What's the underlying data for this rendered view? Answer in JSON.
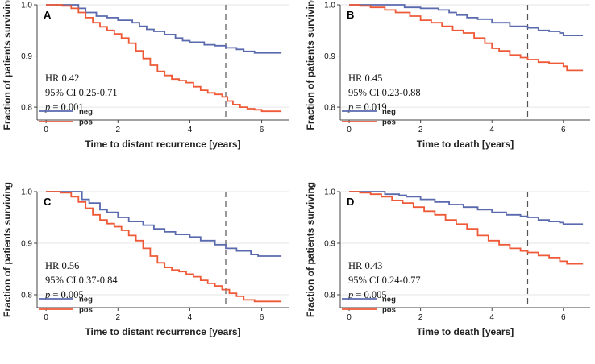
{
  "colors": {
    "neg": "#5a6aae",
    "pos": "#ee5a37",
    "axis": "#444444",
    "grid": "#e6e6e6",
    "ref": "#555555"
  },
  "chart_data": [
    {
      "type": "line",
      "panel": "A",
      "xlabel": "Time to distant recurrence [years]",
      "ylabel": "Fraction of patients surviving",
      "xlim": [
        -0.25,
        6.75
      ],
      "ylim": [
        0.775,
        1.0
      ],
      "xticks": [
        "0",
        "2",
        "4",
        "6"
      ],
      "yticks": [
        "0.8",
        "0.9",
        "1.0"
      ],
      "reference_line_x": 5,
      "annotation": {
        "hr": "HR 0.42",
        "ci": "95% CI 0.25-0.71",
        "p_symbol": "p",
        "p_value": " = 0.001"
      },
      "legend": [
        "neg",
        "pos"
      ],
      "series": [
        {
          "name": "neg",
          "points": [
            [
              0,
              1.0
            ],
            [
              0.85,
              1.0
            ],
            [
              0.9,
              0.993
            ],
            [
              1.1,
              0.985
            ],
            [
              1.3,
              0.985
            ],
            [
              1.4,
              0.978
            ],
            [
              1.7,
              0.975
            ],
            [
              2.0,
              0.97
            ],
            [
              2.4,
              0.965
            ],
            [
              2.6,
              0.958
            ],
            [
              2.8,
              0.952
            ],
            [
              3.0,
              0.948
            ],
            [
              3.3,
              0.942
            ],
            [
              3.6,
              0.935
            ],
            [
              3.8,
              0.93
            ],
            [
              4.0,
              0.927
            ],
            [
              4.4,
              0.922
            ],
            [
              4.7,
              0.92
            ],
            [
              5.0,
              0.916
            ],
            [
              5.3,
              0.913
            ],
            [
              5.5,
              0.909
            ],
            [
              5.8,
              0.906
            ],
            [
              6.55,
              0.906
            ]
          ]
        },
        {
          "name": "pos",
          "points": [
            [
              0,
              1.0
            ],
            [
              0.45,
              0.998
            ],
            [
              0.7,
              0.993
            ],
            [
              0.9,
              0.985
            ],
            [
              1.1,
              0.975
            ],
            [
              1.3,
              0.965
            ],
            [
              1.5,
              0.957
            ],
            [
              1.7,
              0.95
            ],
            [
              1.9,
              0.943
            ],
            [
              2.1,
              0.935
            ],
            [
              2.3,
              0.925
            ],
            [
              2.5,
              0.91
            ],
            [
              2.7,
              0.895
            ],
            [
              2.9,
              0.882
            ],
            [
              3.1,
              0.87
            ],
            [
              3.3,
              0.862
            ],
            [
              3.5,
              0.855
            ],
            [
              3.7,
              0.852
            ],
            [
              3.9,
              0.848
            ],
            [
              4.1,
              0.84
            ],
            [
              4.3,
              0.833
            ],
            [
              4.5,
              0.828
            ],
            [
              4.7,
              0.825
            ],
            [
              4.9,
              0.82
            ],
            [
              5.05,
              0.812
            ],
            [
              5.2,
              0.805
            ],
            [
              5.4,
              0.8
            ],
            [
              5.6,
              0.797
            ],
            [
              5.8,
              0.795
            ],
            [
              6.0,
              0.792
            ],
            [
              6.55,
              0.792
            ]
          ]
        }
      ]
    },
    {
      "type": "line",
      "panel": "B",
      "xlabel": "Time to death [years]",
      "ylabel": "Fraction of patients surviving",
      "xlim": [
        -0.25,
        6.75
      ],
      "ylim": [
        0.775,
        1.0
      ],
      "xticks": [
        "0",
        "2",
        "4",
        "6"
      ],
      "yticks": [
        "0.8",
        "0.9",
        "1.0"
      ],
      "reference_line_x": 5,
      "annotation": {
        "hr": "HR 0.45",
        "ci": "95% CI 0.23-0.88",
        "p_symbol": "p",
        "p_value": " = 0.019"
      },
      "legend": [
        "neg",
        "pos"
      ],
      "series": [
        {
          "name": "neg",
          "points": [
            [
              0,
              1.0
            ],
            [
              1.5,
              1.0
            ],
            [
              1.55,
              0.995
            ],
            [
              2.0,
              0.993
            ],
            [
              2.5,
              0.99
            ],
            [
              2.8,
              0.985
            ],
            [
              3.0,
              0.98
            ],
            [
              3.3,
              0.975
            ],
            [
              3.6,
              0.972
            ],
            [
              4.0,
              0.965
            ],
            [
              4.5,
              0.958
            ],
            [
              5.0,
              0.955
            ],
            [
              5.3,
              0.95
            ],
            [
              5.6,
              0.948
            ],
            [
              5.9,
              0.945
            ],
            [
              6.0,
              0.94
            ],
            [
              6.55,
              0.94
            ]
          ]
        },
        {
          "name": "pos",
          "points": [
            [
              0,
              1.0
            ],
            [
              0.3,
              0.998
            ],
            [
              0.6,
              0.995
            ],
            [
              1.0,
              0.99
            ],
            [
              1.3,
              0.985
            ],
            [
              1.7,
              0.978
            ],
            [
              2.0,
              0.97
            ],
            [
              2.3,
              0.965
            ],
            [
              2.6,
              0.958
            ],
            [
              2.9,
              0.95
            ],
            [
              3.2,
              0.945
            ],
            [
              3.5,
              0.935
            ],
            [
              3.8,
              0.925
            ],
            [
              4.0,
              0.915
            ],
            [
              4.2,
              0.91
            ],
            [
              4.5,
              0.902
            ],
            [
              4.8,
              0.897
            ],
            [
              5.0,
              0.893
            ],
            [
              5.3,
              0.888
            ],
            [
              5.6,
              0.886
            ],
            [
              6.0,
              0.88
            ],
            [
              6.1,
              0.872
            ],
            [
              6.55,
              0.872
            ]
          ]
        }
      ]
    },
    {
      "type": "line",
      "panel": "C",
      "xlabel": "Time to distant recurrence [years]",
      "ylabel": "Fraction of patients surviving",
      "xlim": [
        -0.25,
        6.75
      ],
      "ylim": [
        0.775,
        1.0
      ],
      "xticks": [
        "0",
        "2",
        "4",
        "6"
      ],
      "yticks": [
        "0.8",
        "0.9",
        "1.0"
      ],
      "reference_line_x": 5,
      "annotation": {
        "hr": "HR 0.56",
        "ci": "95% CI 0.37-0.84",
        "p_symbol": "p",
        "p_value": " = 0.005"
      },
      "legend": [
        "neg",
        "pos"
      ],
      "series": [
        {
          "name": "neg",
          "points": [
            [
              0,
              1.0
            ],
            [
              0.9,
              1.0
            ],
            [
              1.0,
              0.985
            ],
            [
              1.2,
              0.978
            ],
            [
              1.5,
              0.965
            ],
            [
              1.7,
              0.96
            ],
            [
              2.0,
              0.95
            ],
            [
              2.3,
              0.942
            ],
            [
              2.7,
              0.935
            ],
            [
              3.0,
              0.928
            ],
            [
              3.3,
              0.922
            ],
            [
              3.6,
              0.917
            ],
            [
              4.0,
              0.912
            ],
            [
              4.3,
              0.905
            ],
            [
              4.7,
              0.897
            ],
            [
              5.0,
              0.89
            ],
            [
              5.3,
              0.885
            ],
            [
              5.7,
              0.878
            ],
            [
              5.9,
              0.875
            ],
            [
              6.55,
              0.875
            ]
          ]
        },
        {
          "name": "pos",
          "points": [
            [
              0,
              1.0
            ],
            [
              0.4,
              0.998
            ],
            [
              0.7,
              0.99
            ],
            [
              0.9,
              0.98
            ],
            [
              1.1,
              0.968
            ],
            [
              1.3,
              0.955
            ],
            [
              1.5,
              0.945
            ],
            [
              1.7,
              0.938
            ],
            [
              1.9,
              0.932
            ],
            [
              2.1,
              0.925
            ],
            [
              2.3,
              0.915
            ],
            [
              2.5,
              0.905
            ],
            [
              2.7,
              0.89
            ],
            [
              2.9,
              0.875
            ],
            [
              3.1,
              0.862
            ],
            [
              3.3,
              0.853
            ],
            [
              3.5,
              0.848
            ],
            [
              3.7,
              0.845
            ],
            [
              3.9,
              0.84
            ],
            [
              4.1,
              0.835
            ],
            [
              4.3,
              0.828
            ],
            [
              4.5,
              0.822
            ],
            [
              4.7,
              0.817
            ],
            [
              4.9,
              0.81
            ],
            [
              5.1,
              0.803
            ],
            [
              5.3,
              0.797
            ],
            [
              5.5,
              0.79
            ],
            [
              5.8,
              0.787
            ],
            [
              6.55,
              0.787
            ]
          ]
        }
      ]
    },
    {
      "type": "line",
      "panel": "D",
      "xlabel": "Time to death [years]",
      "ylabel": "Fraction of patients surviving",
      "xlim": [
        -0.25,
        6.75
      ],
      "ylim": [
        0.775,
        1.0
      ],
      "xticks": [
        "0",
        "2",
        "4",
        "6"
      ],
      "yticks": [
        "0.8",
        "0.9",
        "1.0"
      ],
      "reference_line_x": 5,
      "annotation": {
        "hr": "HR 0.43",
        "ci": "95% CI 0.24-0.77",
        "p_symbol": "p",
        "p_value": " = 0.005"
      },
      "legend": [
        "neg",
        "pos"
      ],
      "series": [
        {
          "name": "neg",
          "points": [
            [
              0,
              1.0
            ],
            [
              0.9,
              1.0
            ],
            [
              1.0,
              0.995
            ],
            [
              1.4,
              0.993
            ],
            [
              1.6,
              0.99
            ],
            [
              2.0,
              0.985
            ],
            [
              2.4,
              0.98
            ],
            [
              2.8,
              0.975
            ],
            [
              3.2,
              0.97
            ],
            [
              3.6,
              0.965
            ],
            [
              4.0,
              0.96
            ],
            [
              4.4,
              0.955
            ],
            [
              4.8,
              0.952
            ],
            [
              5.0,
              0.95
            ],
            [
              5.3,
              0.945
            ],
            [
              5.6,
              0.942
            ],
            [
              5.9,
              0.94
            ],
            [
              6.0,
              0.937
            ],
            [
              6.55,
              0.937
            ]
          ]
        },
        {
          "name": "pos",
          "points": [
            [
              0,
              1.0
            ],
            [
              0.3,
              0.998
            ],
            [
              0.6,
              0.995
            ],
            [
              0.9,
              0.99
            ],
            [
              1.2,
              0.983
            ],
            [
              1.5,
              0.978
            ],
            [
              1.8,
              0.97
            ],
            [
              2.1,
              0.962
            ],
            [
              2.4,
              0.955
            ],
            [
              2.7,
              0.945
            ],
            [
              3.0,
              0.937
            ],
            [
              3.3,
              0.928
            ],
            [
              3.6,
              0.915
            ],
            [
              3.9,
              0.905
            ],
            [
              4.2,
              0.897
            ],
            [
              4.5,
              0.89
            ],
            [
              4.8,
              0.885
            ],
            [
              5.0,
              0.882
            ],
            [
              5.3,
              0.876
            ],
            [
              5.6,
              0.872
            ],
            [
              5.9,
              0.865
            ],
            [
              6.1,
              0.86
            ],
            [
              6.55,
              0.86
            ]
          ]
        }
      ]
    }
  ]
}
